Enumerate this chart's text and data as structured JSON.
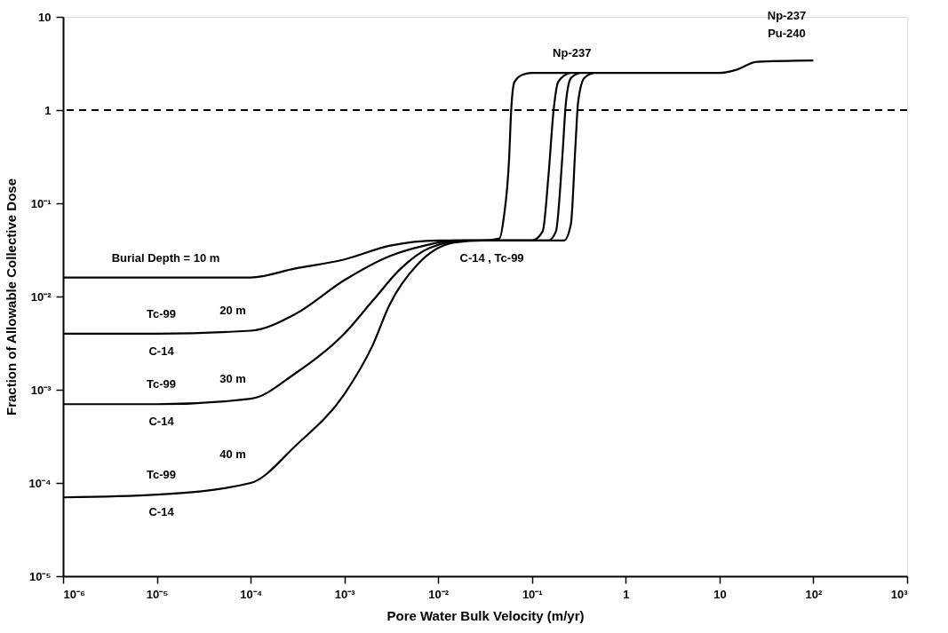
{
  "chart_data": {
    "type": "line",
    "xlabel": "Pore Water Bulk Velocity (m/yr)",
    "ylabel": "Fraction of Allowable Collective Dose",
    "log": "xy",
    "grid": false,
    "marker": "none",
    "line_style": "solid",
    "xlim": [
      1e-06,
      1000
    ],
    "ylim": [
      1e-05,
      10
    ],
    "xticks": [
      {
        "value": 1e-06,
        "label": "10⁻⁶"
      },
      {
        "value": 1e-05,
        "label": "10⁻⁵"
      },
      {
        "value": 0.0001,
        "label": "10⁻⁴"
      },
      {
        "value": 0.001,
        "label": "10⁻³"
      },
      {
        "value": 0.01,
        "label": "10⁻²"
      },
      {
        "value": 0.1,
        "label": "10⁻¹"
      },
      1,
      10,
      {
        "value": 100,
        "label": "10²"
      },
      {
        "value": 1000,
        "label": "10³"
      }
    ],
    "yticks": [
      {
        "value": 1e-05,
        "label": "10⁻⁵"
      },
      {
        "value": 0.0001,
        "label": "10⁻⁴"
      },
      {
        "value": 0.001,
        "label": "10⁻³"
      },
      {
        "value": 0.01,
        "label": "10⁻²"
      },
      {
        "value": 0.1,
        "label": "10⁻¹"
      },
      1,
      10
    ],
    "series": [
      {
        "color": "#000000",
        "x": [
          1e-06,
          1e-05,
          0.0001,
          0.0003,
          0.001,
          0.003,
          0.01,
          0.03,
          0.045,
          0.05,
          0.057,
          0.06,
          0.065,
          0.08,
          0.1,
          10,
          15,
          25,
          100
        ],
        "values": [
          0.016,
          0.016,
          0.016,
          0.02,
          0.025,
          0.035,
          0.04,
          0.04,
          0.042,
          0.07,
          0.3,
          1,
          2,
          2.4,
          2.5,
          2.5,
          2.7,
          3.3,
          3.4
        ]
      },
      {
        "color": "#000000",
        "x": [
          1e-06,
          1e-05,
          0.0001,
          0.0003,
          0.001,
          0.003,
          0.007,
          0.015,
          0.1,
          0.13,
          0.15,
          0.17,
          0.19,
          0.25
        ],
        "values": [
          0.004,
          0.004,
          0.0043,
          0.0065,
          0.015,
          0.027,
          0.035,
          0.04,
          0.04,
          0.05,
          0.2,
          1,
          2,
          2.5
        ]
      },
      {
        "color": "#000000",
        "x": [
          1e-06,
          1e-05,
          0.0001,
          0.0003,
          0.001,
          0.002,
          0.004,
          0.008,
          0.02,
          0.15,
          0.18,
          0.21,
          0.23,
          0.26,
          0.32
        ],
        "values": [
          0.0007,
          0.0007,
          0.0008,
          0.0015,
          0.004,
          0.009,
          0.02,
          0.033,
          0.04,
          0.04,
          0.05,
          0.3,
          1.2,
          2.2,
          2.5
        ]
      },
      {
        "color": "#000000",
        "x": [
          1e-06,
          1e-05,
          0.0001,
          0.0003,
          0.001,
          0.002,
          0.003,
          0.006,
          0.015,
          0.03,
          0.22,
          0.26,
          0.29,
          0.31,
          0.36,
          0.45
        ],
        "values": [
          7e-05,
          7.5e-05,
          0.0001,
          0.00025,
          0.0009,
          0.003,
          0.008,
          0.022,
          0.038,
          0.04,
          0.04,
          0.06,
          0.4,
          1.2,
          2.2,
          2.5
        ]
      }
    ],
    "ref_lines": [
      {
        "axis": "y",
        "value": 1,
        "line_style": "dashed",
        "color": "#000000"
      }
    ],
    "annotations": [
      "Burial Depth = 10 m",
      "Tc-99",
      "20 m",
      "C-14",
      "Tc-99",
      "30 m",
      "C-14",
      "Tc-99",
      "40 m",
      "C-14",
      "C-14 , Tc-99",
      "Np-237",
      "Np-237",
      "Pu-240"
    ]
  }
}
